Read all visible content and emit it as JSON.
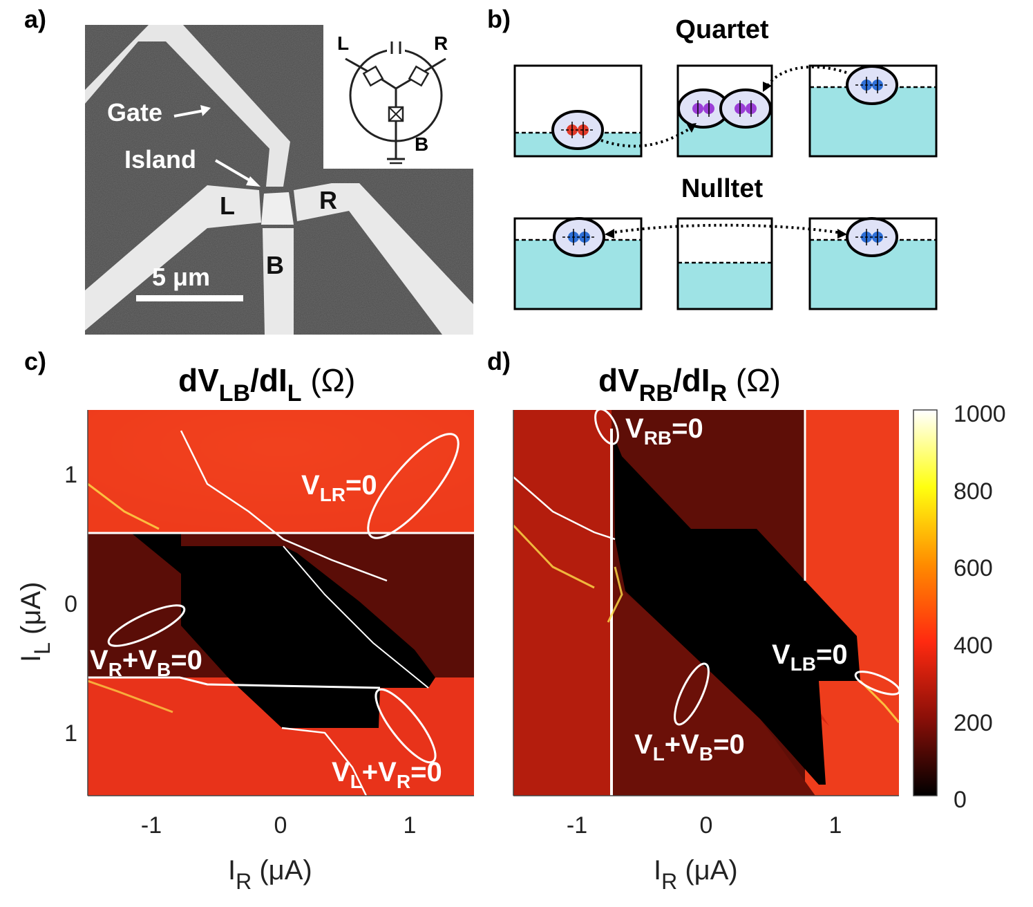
{
  "panels": {
    "a": {
      "letter": "a)",
      "labels": {
        "gate": "Gate",
        "island": "Island",
        "lead_l": "L",
        "lead_r": "R",
        "lead_b": "B",
        "scale_bar": "5 μm"
      },
      "inset": {
        "l": "L",
        "r": "R",
        "b": "B"
      }
    },
    "b": {
      "letter": "b)",
      "quartet_title": "Quartet",
      "nulltet_title": "Nulltet"
    },
    "c": {
      "letter": "c)",
      "title_main": "dV",
      "title_sub1": "LB",
      "title_mid": "/dI",
      "title_sub2": "L",
      "title_unit": " (Ω)",
      "annotations": {
        "vlr": {
          "v": "V",
          "sub": "LR",
          "rest": "=0"
        },
        "vrvb": {
          "v1": "V",
          "sub1": "R",
          "plus": "+V",
          "sub2": "B",
          "rest": "=0"
        },
        "vlvr": {
          "v1": "V",
          "sub1": "L",
          "plus": "+V",
          "sub2": "R",
          "rest": "=0"
        }
      }
    },
    "d": {
      "letter": "d)",
      "title_main": "dV",
      "title_sub1": "RB",
      "title_mid": "/dI",
      "title_sub2": "R",
      "title_unit": " (Ω)",
      "annotations": {
        "vrb": {
          "v": "V",
          "sub": "RB",
          "rest": "=0"
        },
        "vlb": {
          "v": "V",
          "sub": "LB",
          "rest": "=0"
        },
        "vlvb": {
          "v1": "V",
          "sub1": "L",
          "plus": "+V",
          "sub2": "B",
          "rest": "=0"
        }
      }
    }
  },
  "axes": {
    "x_label": {
      "main": "I",
      "sub": "R",
      "unit": " (μA)"
    },
    "y_label": {
      "main": "I",
      "sub": "L",
      "unit": " (μA)"
    },
    "x_ticks": [
      "-1",
      "0",
      "1"
    ],
    "y_ticks": [
      "1",
      "0",
      "1"
    ]
  },
  "colorbar": {
    "ticks": [
      "1000",
      "800",
      "600",
      "400",
      "200",
      "0"
    ]
  },
  "colors": {
    "map_red": "#e8331a",
    "map_dark": "#4a0c06",
    "black": "#000000",
    "cyan": "#9ee3e5",
    "pair_red": "#e23a2a",
    "pair_purple": "#9b3fd6",
    "pair_blue": "#2e6fd6"
  }
}
